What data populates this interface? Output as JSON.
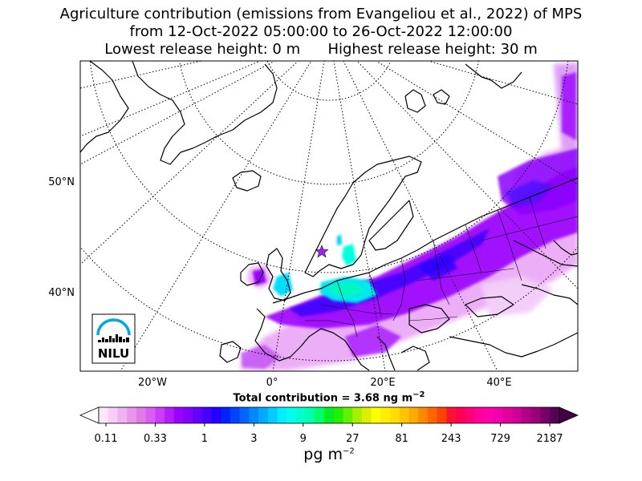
{
  "title": {
    "line1": "Agriculture contribution (emissions from Evangeliou et al., 2022) of MPS",
    "line2": "from 12-Oct-2022 05:00:00 to 26-Oct-2022 12:00:00",
    "line3": "Lowest release height: 0 m      Highest release height: 30 m"
  },
  "map": {
    "lat_labels": [
      "50°N",
      "40°N"
    ],
    "lon_labels": [
      "20°W",
      "0°",
      "20°E",
      "40°E"
    ],
    "release_marker": "star-icon",
    "logo_text": "NILU",
    "colors": {
      "coast": "#000000",
      "graticule": "#000000",
      "plume_low": "#9a00ff",
      "plume_mid": "#3300ff",
      "plume_high": "#00ffee"
    }
  },
  "summary": {
    "total_prefix": "Total contribution = 3.68 ng m",
    "total_exp": "−2"
  },
  "colorbar": {
    "tick_labels": [
      "0.11",
      "0.33",
      "1",
      "3",
      "9",
      "27",
      "81",
      "243",
      "729",
      "2187"
    ],
    "unit_base": "pg m",
    "unit_exp": "−2",
    "colors": [
      "#fde8fd",
      "#f8cef8",
      "#f0b2f0",
      "#e896e8",
      "#e07ae8",
      "#d95ef0",
      "#cc3cf6",
      "#b21cff",
      "#9a00ff",
      "#8400ff",
      "#6600ff",
      "#4400ff",
      "#2200ff",
      "#0022ff",
      "#0044ff",
      "#0066ff",
      "#0088ff",
      "#00aaff",
      "#00ccff",
      "#00eeff",
      "#00ffee",
      "#00ffcc",
      "#00ffaa",
      "#00ff66",
      "#00ee22",
      "#22ee00",
      "#66ee00",
      "#aaee00",
      "#ddee00",
      "#ffff00",
      "#ffee00",
      "#ffdd00",
      "#ffc400",
      "#ffaa00",
      "#ff8800",
      "#ff6600",
      "#ff4400",
      "#ff1133",
      "#ff0055",
      "#ff0077",
      "#ff0099",
      "#ff00aa",
      "#f000aa",
      "#e0009e",
      "#cc0099",
      "#b00088",
      "#990077",
      "#770066",
      "#550055"
    ]
  },
  "chart_data": {
    "type": "heatmap",
    "title": "Agriculture contribution (emissions from Evangeliou et al., 2022) of MPS",
    "subtitle": "from 12-Oct-2022 05:00:00 to 26-Oct-2022 12:00:00",
    "colorbar_ticks": [
      0.11,
      0.33,
      1,
      3,
      9,
      27,
      81,
      243,
      729,
      2187
    ],
    "colorbar_unit": "pg m−2",
    "total_contribution": "3.68 ng m−2"
  }
}
